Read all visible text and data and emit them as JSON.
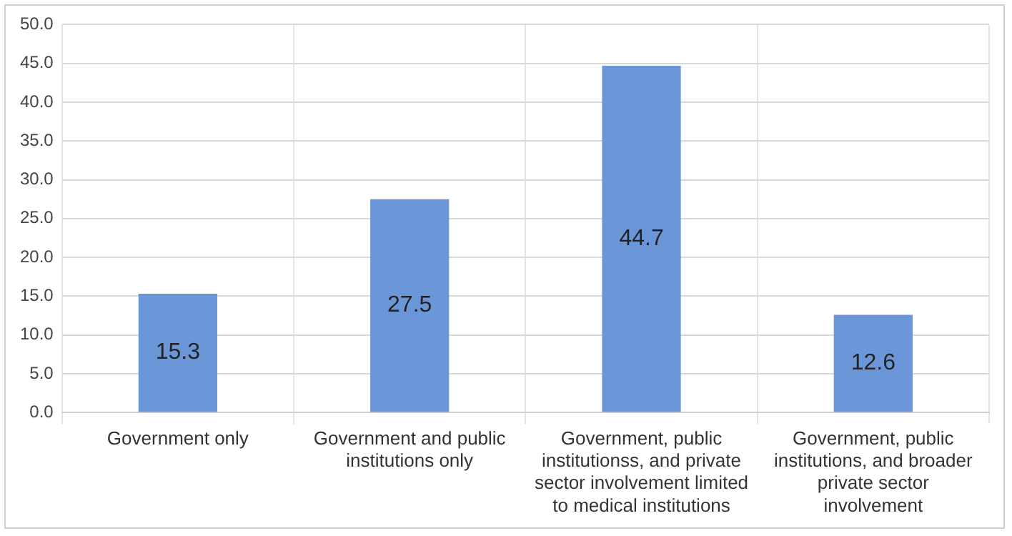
{
  "chart_data": {
    "type": "bar",
    "categories": [
      "Government only",
      "Government and public institutions only",
      "Government, public institutionss, and private sector involvement limited to medical institutions",
      "Government, public institutions, and broader private sector involvement"
    ],
    "values": [
      15.3,
      27.5,
      44.7,
      12.6
    ],
    "color": "#6b97d9",
    "ylim": [
      0,
      50
    ],
    "yticks": [
      {
        "value": 0,
        "label": "0.0"
      },
      {
        "value": 5,
        "label": "5.0"
      },
      {
        "value": 10,
        "label": "10.0"
      },
      {
        "value": 15,
        "label": "15.0"
      },
      {
        "value": 20,
        "label": "20.0"
      },
      {
        "value": 25,
        "label": "25.0"
      },
      {
        "value": 30,
        "label": "30.0"
      },
      {
        "value": 35,
        "label": "35.0"
      },
      {
        "value": 40,
        "label": "40.0"
      },
      {
        "value": 45,
        "label": "45.0"
      },
      {
        "value": 50,
        "label": "50.0"
      }
    ],
    "grid": true,
    "data_labels": true
  }
}
